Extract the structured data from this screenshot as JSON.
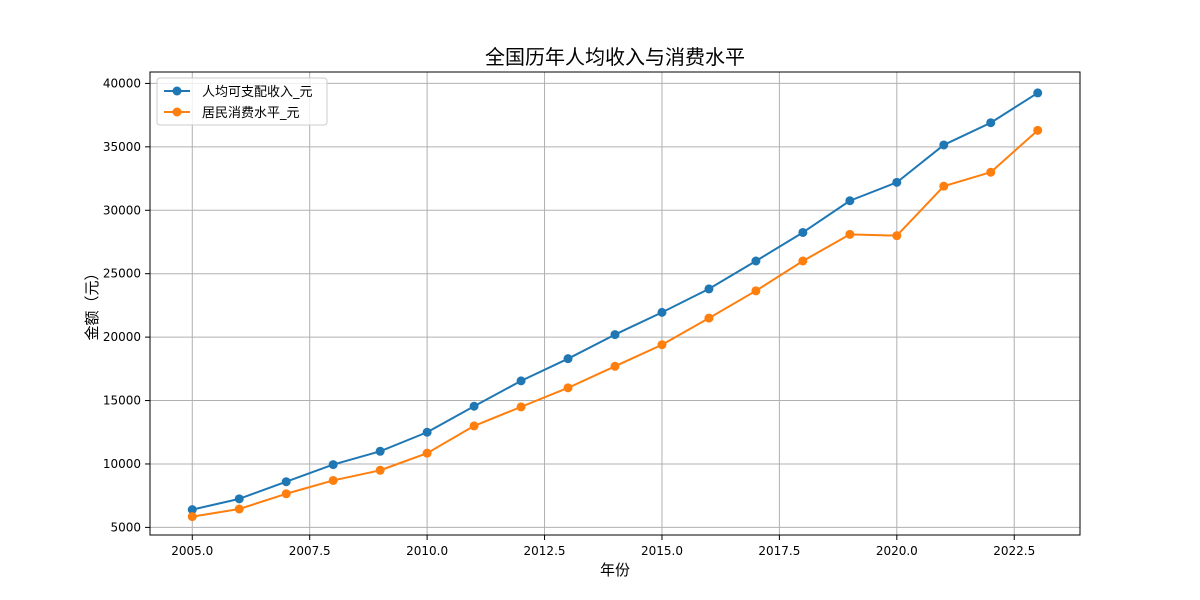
{
  "chart_data": {
    "type": "line",
    "title": "全国历年人均收入与消费水平",
    "xlabel": "年份",
    "ylabel": "金额（元）",
    "x": [
      2005,
      2006,
      2007,
      2008,
      2009,
      2010,
      2011,
      2012,
      2013,
      2014,
      2015,
      2016,
      2017,
      2018,
      2019,
      2020,
      2021,
      2022,
      2023
    ],
    "xlim": [
      2004.1,
      2023.9
    ],
    "ylim": [
      4400,
      40900
    ],
    "x_ticks": [
      2005.0,
      2007.5,
      2010.0,
      2012.5,
      2015.0,
      2017.5,
      2020.0,
      2022.5
    ],
    "x_tick_labels": [
      "2005.0",
      "2007.5",
      "2010.0",
      "2012.5",
      "2015.0",
      "2017.5",
      "2020.0",
      "2022.5"
    ],
    "y_ticks": [
      5000,
      10000,
      15000,
      20000,
      25000,
      30000,
      35000,
      40000
    ],
    "y_tick_labels": [
      "5000",
      "10000",
      "15000",
      "20000",
      "25000",
      "30000",
      "35000",
      "40000"
    ],
    "grid": true,
    "legend_position": "upper-left",
    "series": [
      {
        "name": "人均可支配收入_元",
        "color": "#1f77b4",
        "marker": "circle",
        "values": [
          6400,
          7250,
          8600,
          9950,
          11000,
          12500,
          14550,
          16550,
          18300,
          20200,
          21950,
          23800,
          26000,
          28250,
          30750,
          32200,
          35150,
          36900,
          39250
        ]
      },
      {
        "name": "居民消费水平_元",
        "color": "#ff7f0e",
        "marker": "circle",
        "values": [
          5850,
          6450,
          7650,
          8700,
          9500,
          10850,
          13000,
          14500,
          16000,
          17700,
          19400,
          21500,
          23650,
          26000,
          28100,
          28000,
          31900,
          33000,
          36300
        ]
      }
    ]
  }
}
